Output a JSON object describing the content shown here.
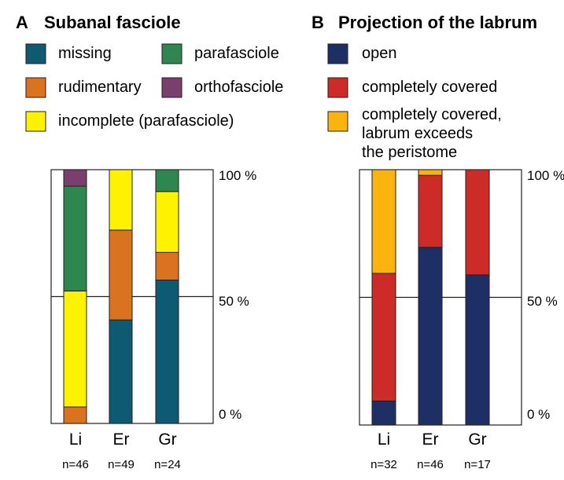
{
  "chart_data": [
    {
      "type": "bar",
      "stacked": true,
      "panel_letter": "A",
      "title": "Subanal fasciole",
      "categories": [
        "Li",
        "Er",
        "Gr"
      ],
      "sample_sizes": [
        "n=46",
        "n=49",
        "n=24"
      ],
      "ylim": [
        0,
        100
      ],
      "yticks": [
        "0 %",
        "50 %",
        "100 %"
      ],
      "legend": [
        "missing",
        "parafasciole",
        "rudimentary",
        "orthofasciole",
        "incomplete (parafasciole)"
      ],
      "series": [
        {
          "name": "missing",
          "color": "#0f5a73",
          "values": [
            0,
            40.8,
            56.5
          ]
        },
        {
          "name": "rudimentary",
          "color": "#d9731f",
          "values": [
            6.5,
            35.4,
            10.9
          ]
        },
        {
          "name": "incomplete (parafasciole)",
          "color": "#fff200",
          "values": [
            45.7,
            23.8,
            24.0
          ]
        },
        {
          "name": "parafasciole",
          "color": "#2e8651",
          "values": [
            41.3,
            0,
            8.6
          ]
        },
        {
          "name": "orthofasciole",
          "color": "#7b3f6e",
          "values": [
            6.5,
            0,
            0
          ]
        }
      ]
    },
    {
      "type": "bar",
      "stacked": true,
      "panel_letter": "B",
      "title": "Projection of the labrum",
      "categories": [
        "Li",
        "Er",
        "Gr"
      ],
      "sample_sizes": [
        "n=32",
        "n=46",
        "n=17"
      ],
      "ylim": [
        0,
        100
      ],
      "yticks": [
        "0 %",
        "50 %",
        "100 %"
      ],
      "legend": [
        "open",
        "completely covered",
        "completely covered,\nlabrum exceeds\nthe peristome"
      ],
      "series": [
        {
          "name": "open",
          "color": "#1e2f66",
          "values": [
            9.4,
            69.6,
            58.8
          ]
        },
        {
          "name": "completely covered",
          "color": "#cc2b27",
          "values": [
            50.0,
            28.2,
            41.2
          ]
        },
        {
          "name": "completely covered,\nlabrum exceeds\nthe peristome",
          "color": "#fbb40f",
          "values": [
            40.6,
            2.2,
            0
          ]
        }
      ]
    }
  ]
}
